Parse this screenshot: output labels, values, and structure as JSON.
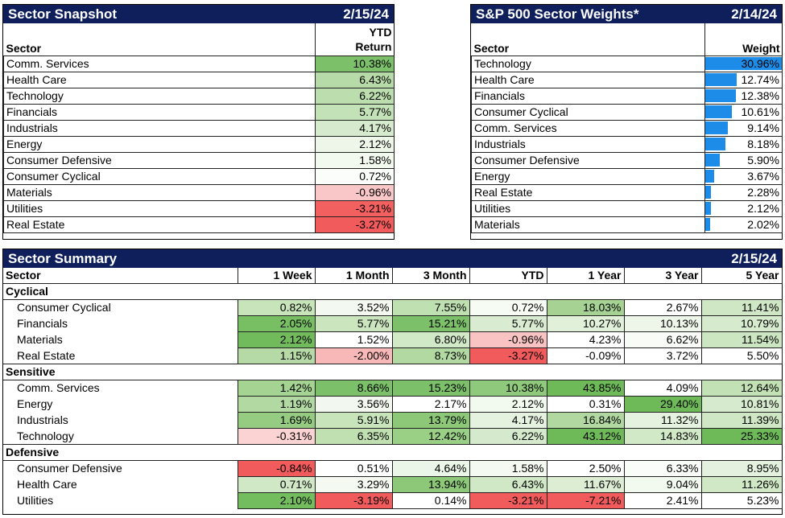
{
  "snapshot": {
    "title": "Sector Snapshot",
    "date": "2/15/24",
    "col_sector": "Sector",
    "col_ytd_line1": "YTD",
    "col_ytd_line2": "Return",
    "rows": [
      {
        "sector": "Comm. Services",
        "value": "10.38%",
        "color": "#7cc06a"
      },
      {
        "sector": "Health Care",
        "value": "6.43%",
        "color": "#b7dba8"
      },
      {
        "sector": "Technology",
        "value": "6.22%",
        "color": "#bcdeae"
      },
      {
        "sector": "Financials",
        "value": "5.77%",
        "color": "#c4e2b7"
      },
      {
        "sector": "Industrials",
        "value": "4.17%",
        "color": "#d6eacd"
      },
      {
        "sector": "Energy",
        "value": "2.12%",
        "color": "#edf6e9"
      },
      {
        "sector": "Consumer Defensive",
        "value": "1.58%",
        "color": "#f2f9ef"
      },
      {
        "sector": "Consumer Cyclical",
        "value": "0.72%",
        "color": "#fbfdfa"
      },
      {
        "sector": "Materials",
        "value": "-0.96%",
        "color": "#f9c7c7"
      },
      {
        "sector": "Utilities",
        "value": "-3.21%",
        "color": "#f36060"
      },
      {
        "sector": "Real Estate",
        "value": "-3.27%",
        "color": "#f25b5b"
      }
    ]
  },
  "weights": {
    "title": "S&P 500 Sector Weights*",
    "date": "2/14/24",
    "col_sector": "Sector",
    "col_weight": "Weight",
    "bar_color": "#1d8ce8",
    "rows": [
      {
        "sector": "Technology",
        "value": "30.96%",
        "weight": 30.96
      },
      {
        "sector": "Health Care",
        "value": "12.74%",
        "weight": 12.74
      },
      {
        "sector": "Financials",
        "value": "12.38%",
        "weight": 12.38
      },
      {
        "sector": "Consumer Cyclical",
        "value": "10.61%",
        "weight": 10.61
      },
      {
        "sector": "Comm. Services",
        "value": "9.14%",
        "weight": 9.14
      },
      {
        "sector": "Industrials",
        "value": "8.18%",
        "weight": 8.18
      },
      {
        "sector": "Consumer Defensive",
        "value": "5.90%",
        "weight": 5.9
      },
      {
        "sector": "Energy",
        "value": "3.67%",
        "weight": 3.67
      },
      {
        "sector": "Real Estate",
        "value": "2.28%",
        "weight": 2.28
      },
      {
        "sector": "Utilities",
        "value": "2.12%",
        "weight": 2.12
      },
      {
        "sector": "Materials",
        "value": "2.02%",
        "weight": 2.02
      }
    ]
  },
  "summary": {
    "title": "Sector Summary",
    "date": "2/15/24",
    "headers": [
      "Sector",
      "1 Week",
      "1 Month",
      "3 Month",
      "YTD",
      "1 Year",
      "3 Year",
      "5 Year"
    ],
    "groups": [
      {
        "name": "Cyclical",
        "rows": [
          {
            "sector": "Consumer Cyclical",
            "cells": [
              [
                "0.82%",
                "#c8e4bb"
              ],
              [
                "3.52%",
                "#f3f9f0"
              ],
              [
                "7.55%",
                "#bfe0b1"
              ],
              [
                "0.72%",
                "#f6fbf4"
              ],
              [
                "18.03%",
                "#a6d393"
              ],
              [
                "2.67%",
                "#ffffff"
              ],
              [
                "11.41%",
                "#cfe7c4"
              ]
            ]
          },
          {
            "sector": "Financials",
            "cells": [
              [
                "2.05%",
                "#78bf63"
              ],
              [
                "5.77%",
                "#cbe5bf"
              ],
              [
                "15.21%",
                "#7cc06a"
              ],
              [
                "5.77%",
                "#d9ecd1"
              ],
              [
                "10.27%",
                "#e0f0d9"
              ],
              [
                "10.13%",
                "#edf6e9"
              ],
              [
                "10.79%",
                "#d6eacd"
              ]
            ]
          },
          {
            "sector": "Materials",
            "cells": [
              [
                "2.12%",
                "#72bb5c"
              ],
              [
                "1.52%",
                "#ffffff"
              ],
              [
                "6.80%",
                "#d2e9c8"
              ],
              [
                "-0.96%",
                "#f9c3c3"
              ],
              [
                "4.23%",
                "#ffffff"
              ],
              [
                "6.62%",
                "#f8fbf6"
              ],
              [
                "11.54%",
                "#cde6c2"
              ]
            ]
          },
          {
            "sector": "Real Estate",
            "cells": [
              [
                "1.15%",
                "#b6daa6"
              ],
              [
                "-2.00%",
                "#f8b8b8"
              ],
              [
                "8.73%",
                "#b3d9a3"
              ],
              [
                "-3.27%",
                "#f25b5b"
              ],
              [
                "-0.09%",
                "#ffffff"
              ],
              [
                "3.72%",
                "#ffffff"
              ],
              [
                "5.50%",
                "#ffffff"
              ]
            ]
          }
        ]
      },
      {
        "name": "Sensitive",
        "rows": [
          {
            "sector": "Comm. Services",
            "cells": [
              [
                "1.42%",
                "#a5d392"
              ],
              [
                "8.66%",
                "#7cc06a"
              ],
              [
                "15.23%",
                "#7cc06a"
              ],
              [
                "10.38%",
                "#8fc97b"
              ],
              [
                "43.85%",
                "#6fba58"
              ],
              [
                "4.09%",
                "#ffffff"
              ],
              [
                "12.64%",
                "#c2e1b4"
              ]
            ]
          },
          {
            "sector": "Energy",
            "cells": [
              [
                "1.19%",
                "#b3d9a3"
              ],
              [
                "3.56%",
                "#f2f8ef"
              ],
              [
                "2.17%",
                "#ffffff"
              ],
              [
                "2.12%",
                "#f2f9ef"
              ],
              [
                "0.31%",
                "#ffffff"
              ],
              [
                "29.40%",
                "#6fba58"
              ],
              [
                "10.81%",
                "#d6eacd"
              ]
            ]
          },
          {
            "sector": "Industrials",
            "cells": [
              [
                "1.69%",
                "#95cc82"
              ],
              [
                "5.91%",
                "#c8e4bb"
              ],
              [
                "13.79%",
                "#8dc879"
              ],
              [
                "4.17%",
                "#e6f2e0"
              ],
              [
                "16.84%",
                "#b0d8a0"
              ],
              [
                "11.32%",
                "#e6f2e0"
              ],
              [
                "11.39%",
                "#cfe7c4"
              ]
            ]
          },
          {
            "sector": "Technology",
            "cells": [
              [
                "-0.31%",
                "#fbd3d3"
              ],
              [
                "6.35%",
                "#c0e0b2"
              ],
              [
                "12.42%",
                "#9ad086"
              ],
              [
                "6.22%",
                "#d5eacc"
              ],
              [
                "43.12%",
                "#6fba58"
              ],
              [
                "14.83%",
                "#d2e9c8"
              ],
              [
                "25.33%",
                "#6fba58"
              ]
            ]
          }
        ]
      },
      {
        "name": "Defensive",
        "rows": [
          {
            "sector": "Consumer Defensive",
            "cells": [
              [
                "-0.84%",
                "#f25b5b"
              ],
              [
                "0.51%",
                "#ffffff"
              ],
              [
                "4.64%",
                "#ecf6e8"
              ],
              [
                "1.58%",
                "#f4faf1"
              ],
              [
                "2.50%",
                "#ffffff"
              ],
              [
                "6.33%",
                "#f9fcf8"
              ],
              [
                "8.95%",
                "#e4f1de"
              ]
            ]
          },
          {
            "sector": "Health Care",
            "cells": [
              [
                "0.71%",
                "#d1e8c6"
              ],
              [
                "3.29%",
                "#f4faf1"
              ],
              [
                "13.94%",
                "#8dc879"
              ],
              [
                "6.43%",
                "#d1e8c6"
              ],
              [
                "11.67%",
                "#dcedd3"
              ],
              [
                "9.04%",
                "#f2f9ef"
              ],
              [
                "11.26%",
                "#d0e8c5"
              ]
            ]
          },
          {
            "sector": "Utilities",
            "cells": [
              [
                "2.10%",
                "#74bd5e"
              ],
              [
                "-3.19%",
                "#f25b5b"
              ],
              [
                "0.14%",
                "#ffffff"
              ],
              [
                "-3.21%",
                "#f25b5b"
              ],
              [
                "-7.21%",
                "#f25b5b"
              ],
              [
                "2.41%",
                "#ffffff"
              ],
              [
                "5.23%",
                "#ffffff"
              ]
            ]
          }
        ]
      }
    ]
  }
}
